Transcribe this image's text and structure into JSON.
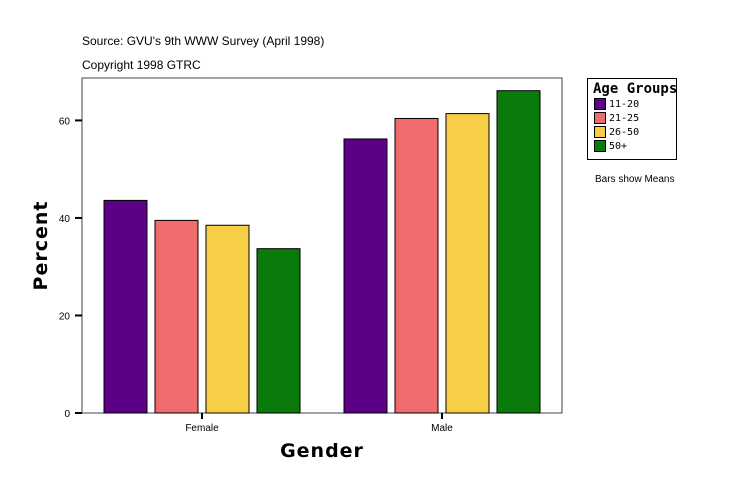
{
  "chart_data": {
    "type": "bar",
    "subtitle_lines": [
      "Source: GVU's 9th WWW Survey (April 1998)",
      "Copyright 1998 GTRC"
    ],
    "xlabel": "Gender",
    "ylabel": "Percent",
    "categories": [
      "Female",
      "Male"
    ],
    "ylim": [
      0,
      68.7
    ],
    "yticks": [
      0,
      20,
      40,
      60
    ],
    "grid": false,
    "legend_title": "Age Groups",
    "legend_placement": "right",
    "note": "Bars show Means",
    "series": [
      {
        "name": "11-20",
        "color": "#5c0087",
        "values": [
          43.6,
          56.2
        ]
      },
      {
        "name": "21-25",
        "color": "#f06b6b",
        "values": [
          39.5,
          60.4
        ]
      },
      {
        "name": "26-50",
        "color": "#f7cf46",
        "values": [
          38.5,
          61.4
        ]
      },
      {
        "name": "50+",
        "color": "#0a7a0a",
        "values": [
          33.7,
          66.1
        ]
      }
    ]
  }
}
